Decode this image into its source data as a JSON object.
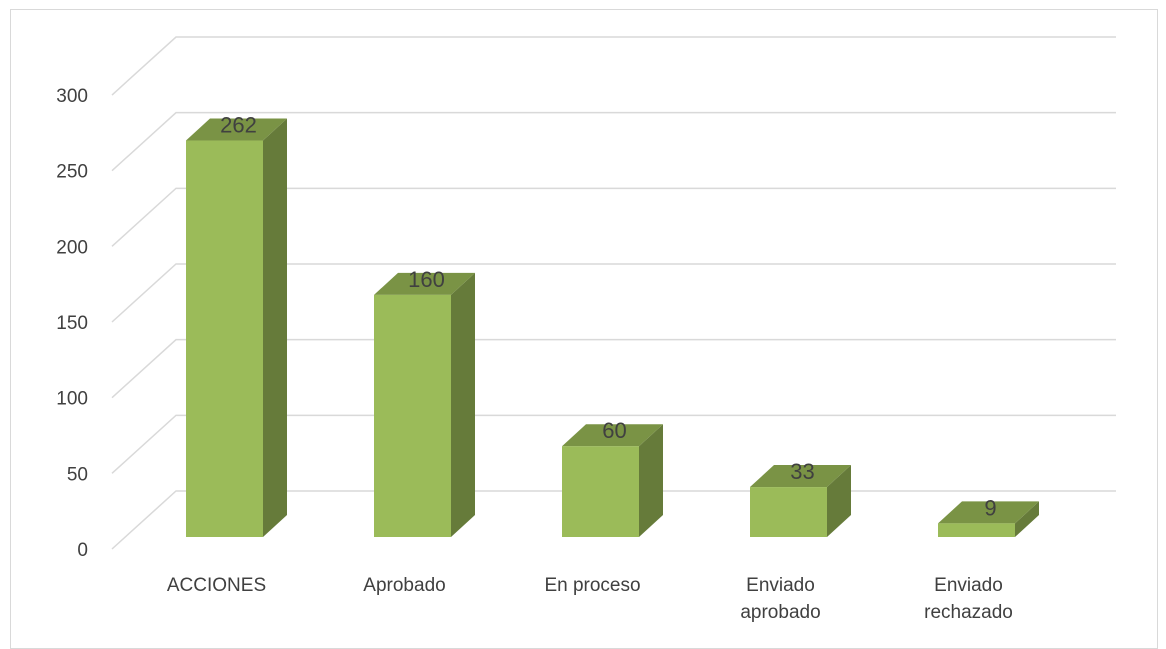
{
  "chart_data": {
    "type": "bar",
    "style": "3d-column",
    "categories": [
      "ACCIONES",
      "Aprobado",
      "En proceso",
      "Enviado aprobado",
      "Enviado rechazado"
    ],
    "category_lines": [
      [
        "ACCIONES"
      ],
      [
        "Aprobado"
      ],
      [
        "En proceso"
      ],
      [
        "Enviado",
        "aprobado"
      ],
      [
        "Enviado",
        "rechazado"
      ]
    ],
    "values": [
      262,
      160,
      60,
      33,
      9
    ],
    "data_labels": [
      "262",
      "160",
      "60",
      "33",
      "9"
    ],
    "y_ticks": [
      "0",
      "50",
      "100",
      "150",
      "200",
      "250",
      "300"
    ],
    "ylim": [
      0,
      300
    ],
    "grid": true,
    "legend": "none",
    "colors": {
      "front": "#9bbb59",
      "side": "#667b3a",
      "top": "#7a9345",
      "gridline": "#d9d9d9",
      "text": "#404040"
    }
  }
}
